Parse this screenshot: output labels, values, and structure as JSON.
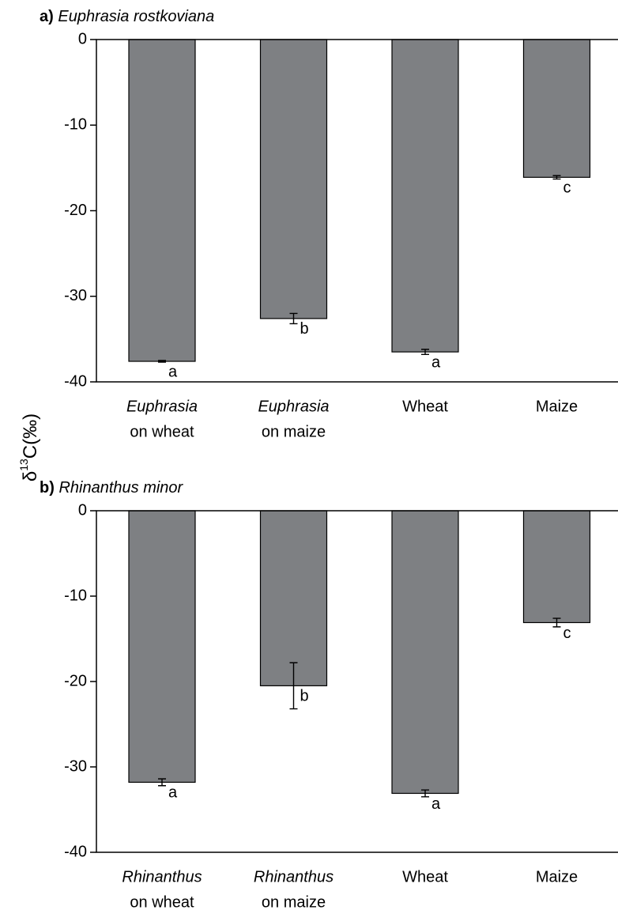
{
  "ylabel": {
    "base": "δ",
    "sup": "13",
    "rest": "C(‰)"
  },
  "chart_data": [
    {
      "type": "bar",
      "panel_label": "a)",
      "title": "Euphrasia rostkoviana",
      "categories": [
        [
          "Euphrasia",
          "on wheat"
        ],
        [
          "Euphrasia",
          "on maize"
        ],
        [
          "Wheat"
        ],
        [
          "Maize"
        ]
      ],
      "values": [
        -37.6,
        -32.6,
        -36.5,
        -16.1
      ],
      "errors": [
        0.1,
        0.6,
        0.3,
        0.2
      ],
      "letters": [
        "a",
        "b",
        "a",
        "c"
      ],
      "color": "#7e8083",
      "ylim": [
        -40,
        0
      ],
      "yticks": [
        0,
        -10,
        -20,
        -30,
        -40
      ]
    },
    {
      "type": "bar",
      "panel_label": "b)",
      "title": "Rhinanthus minor",
      "categories": [
        [
          "Rhinanthus",
          "on wheat"
        ],
        [
          "Rhinanthus",
          "on maize"
        ],
        [
          "Wheat"
        ],
        [
          "Maize"
        ]
      ],
      "values": [
        -31.8,
        -20.5,
        -33.1,
        -13.1
      ],
      "errors": [
        0.4,
        2.7,
        0.4,
        0.5
      ],
      "letters": [
        "a",
        "b",
        "a",
        "c"
      ],
      "color": "#7e8083",
      "ylim": [
        -40,
        0
      ],
      "yticks": [
        0,
        -10,
        -20,
        -30,
        -40
      ]
    }
  ]
}
